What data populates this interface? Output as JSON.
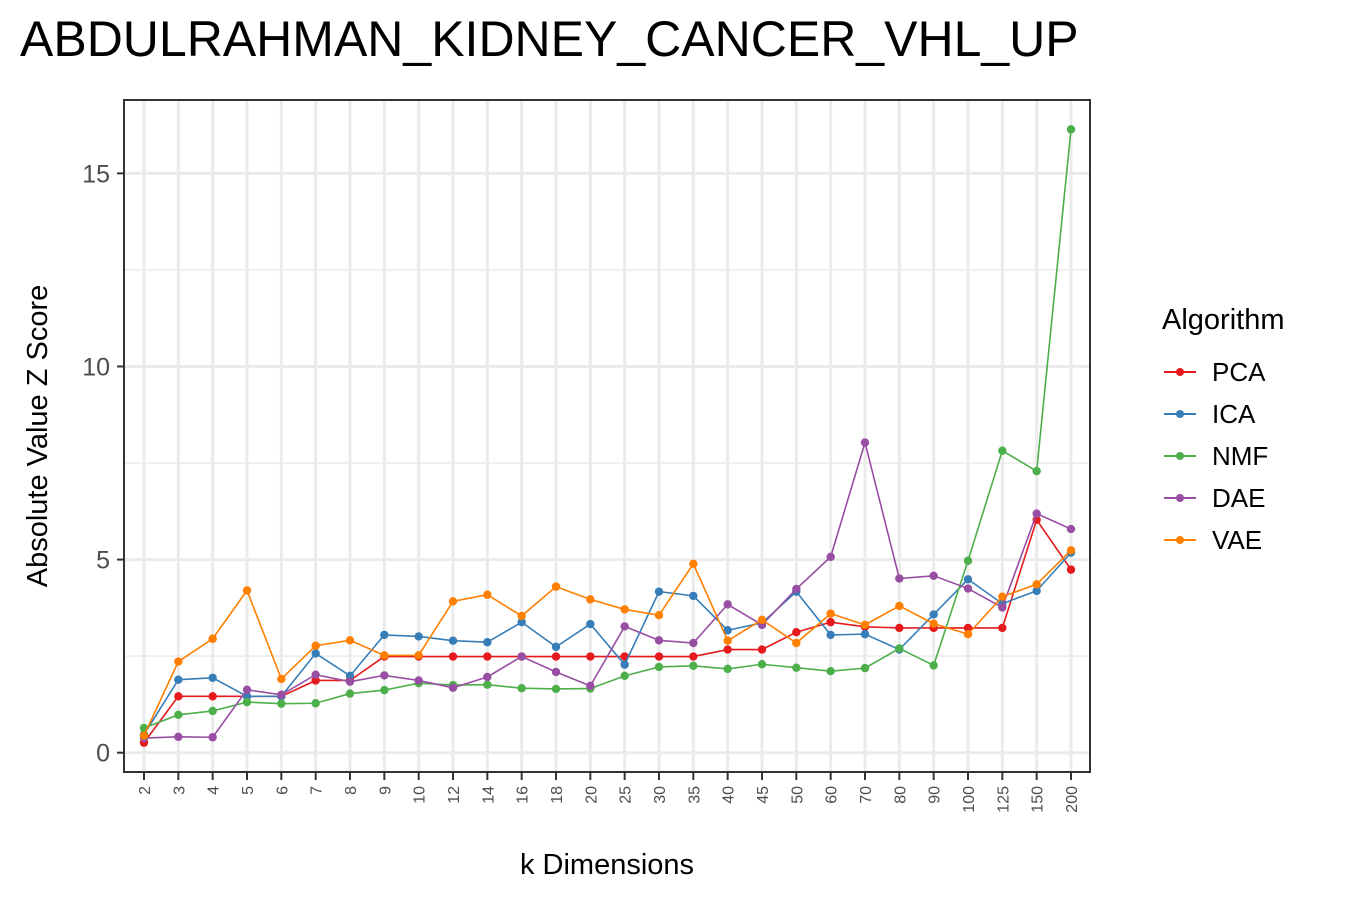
{
  "chart_data": {
    "type": "line",
    "title": "ABDULRAHMAN_KIDNEY_CANCER_VHL_UP",
    "xlabel": "k Dimensions",
    "ylabel": "Absolute Value Z Score",
    "categories": [
      "2",
      "3",
      "4",
      "5",
      "6",
      "7",
      "8",
      "9",
      "10",
      "12",
      "14",
      "16",
      "18",
      "20",
      "25",
      "30",
      "35",
      "40",
      "45",
      "50",
      "60",
      "70",
      "80",
      "90",
      "100",
      "125",
      "150",
      "200"
    ],
    "yticks": [
      0,
      5,
      10,
      15
    ],
    "ylim": [
      -0.5,
      16.9
    ],
    "grid": true,
    "legend_title": "Algorithm",
    "legend_position": "right",
    "series": [
      {
        "name": "PCA",
        "color": "#E41A1C",
        "values": [
          0.26,
          1.46,
          1.46,
          1.46,
          1.46,
          1.87,
          1.87,
          2.49,
          2.49,
          2.49,
          2.49,
          2.49,
          2.49,
          2.49,
          2.49,
          2.49,
          2.49,
          2.67,
          2.67,
          3.12,
          3.38,
          3.26,
          3.23,
          3.23,
          3.23,
          3.23,
          6.03,
          4.74
        ]
      },
      {
        "name": "ICA",
        "color": "#377EB8",
        "values": [
          0.47,
          1.89,
          1.94,
          1.46,
          1.46,
          2.57,
          1.99,
          3.05,
          3.01,
          2.9,
          2.86,
          3.38,
          2.74,
          3.33,
          2.28,
          4.17,
          4.06,
          3.17,
          3.36,
          4.17,
          3.05,
          3.07,
          2.67,
          3.58,
          4.49,
          3.86,
          4.19,
          5.18
        ]
      },
      {
        "name": "NMF",
        "color": "#4DAF4A",
        "values": [
          0.64,
          0.98,
          1.08,
          1.31,
          1.27,
          1.28,
          1.53,
          1.62,
          1.8,
          1.75,
          1.76,
          1.67,
          1.65,
          1.66,
          1.99,
          2.22,
          2.25,
          2.17,
          2.29,
          2.2,
          2.11,
          2.19,
          2.7,
          2.26,
          4.97,
          7.82,
          7.29,
          16.14
        ]
      },
      {
        "name": "DAE",
        "color": "#984EA3",
        "values": [
          0.38,
          0.41,
          0.4,
          1.63,
          1.5,
          2.02,
          1.84,
          2.0,
          1.87,
          1.68,
          1.96,
          2.49,
          2.09,
          1.73,
          3.27,
          2.91,
          2.84,
          3.84,
          3.31,
          4.24,
          5.07,
          8.03,
          4.51,
          4.58,
          4.25,
          3.76,
          6.19,
          5.79
        ]
      },
      {
        "name": "VAE",
        "color": "#FF7F00",
        "values": [
          0.44,
          2.36,
          2.95,
          4.2,
          1.91,
          2.77,
          2.91,
          2.52,
          2.52,
          3.92,
          4.09,
          3.54,
          4.3,
          3.97,
          3.71,
          3.56,
          4.89,
          2.9,
          3.44,
          2.84,
          3.6,
          3.31,
          3.8,
          3.34,
          3.07,
          4.04,
          4.36,
          5.24
        ]
      }
    ]
  }
}
